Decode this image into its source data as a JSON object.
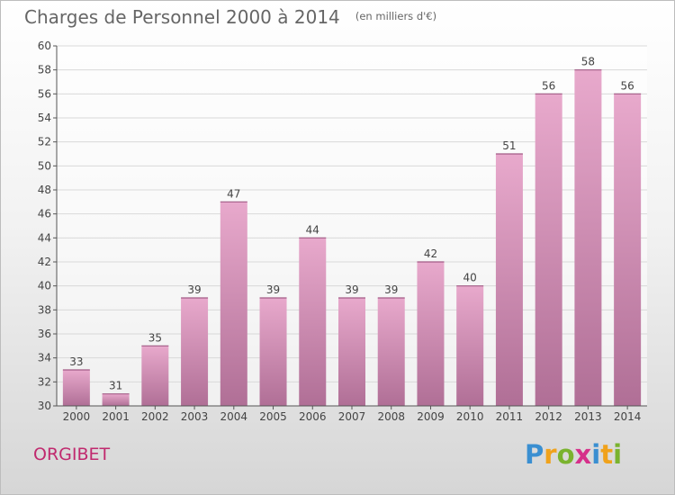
{
  "chart_data": {
    "type": "bar",
    "title": "Charges de Personnel 2000 à 2014",
    "subtitle": "(en milliers d'€)",
    "categories": [
      "2000",
      "2001",
      "2002",
      "2003",
      "2004",
      "2005",
      "2006",
      "2007",
      "2008",
      "2009",
      "2010",
      "2011",
      "2012",
      "2013",
      "2014"
    ],
    "values": [
      33,
      31,
      35,
      39,
      47,
      39,
      44,
      39,
      39,
      42,
      40,
      51,
      56,
      58,
      56
    ],
    "ylim": [
      30,
      60
    ],
    "yticks": [
      30,
      32,
      34,
      36,
      38,
      40,
      42,
      44,
      46,
      48,
      50,
      52,
      54,
      56,
      58,
      60
    ],
    "grid": true,
    "bar_color_top": "#e8a9cc",
    "bar_color_bottom": "#b06f96"
  },
  "commune": "ORGIBET",
  "logo": {
    "letters": [
      "P",
      "r",
      "o",
      "x",
      "i",
      "t",
      "i"
    ],
    "colors": [
      "#3a8fd1",
      "#f0a21b",
      "#7ab32e",
      "#d6308a",
      "#3a8fd1",
      "#f0a21b",
      "#7ab32e"
    ]
  }
}
